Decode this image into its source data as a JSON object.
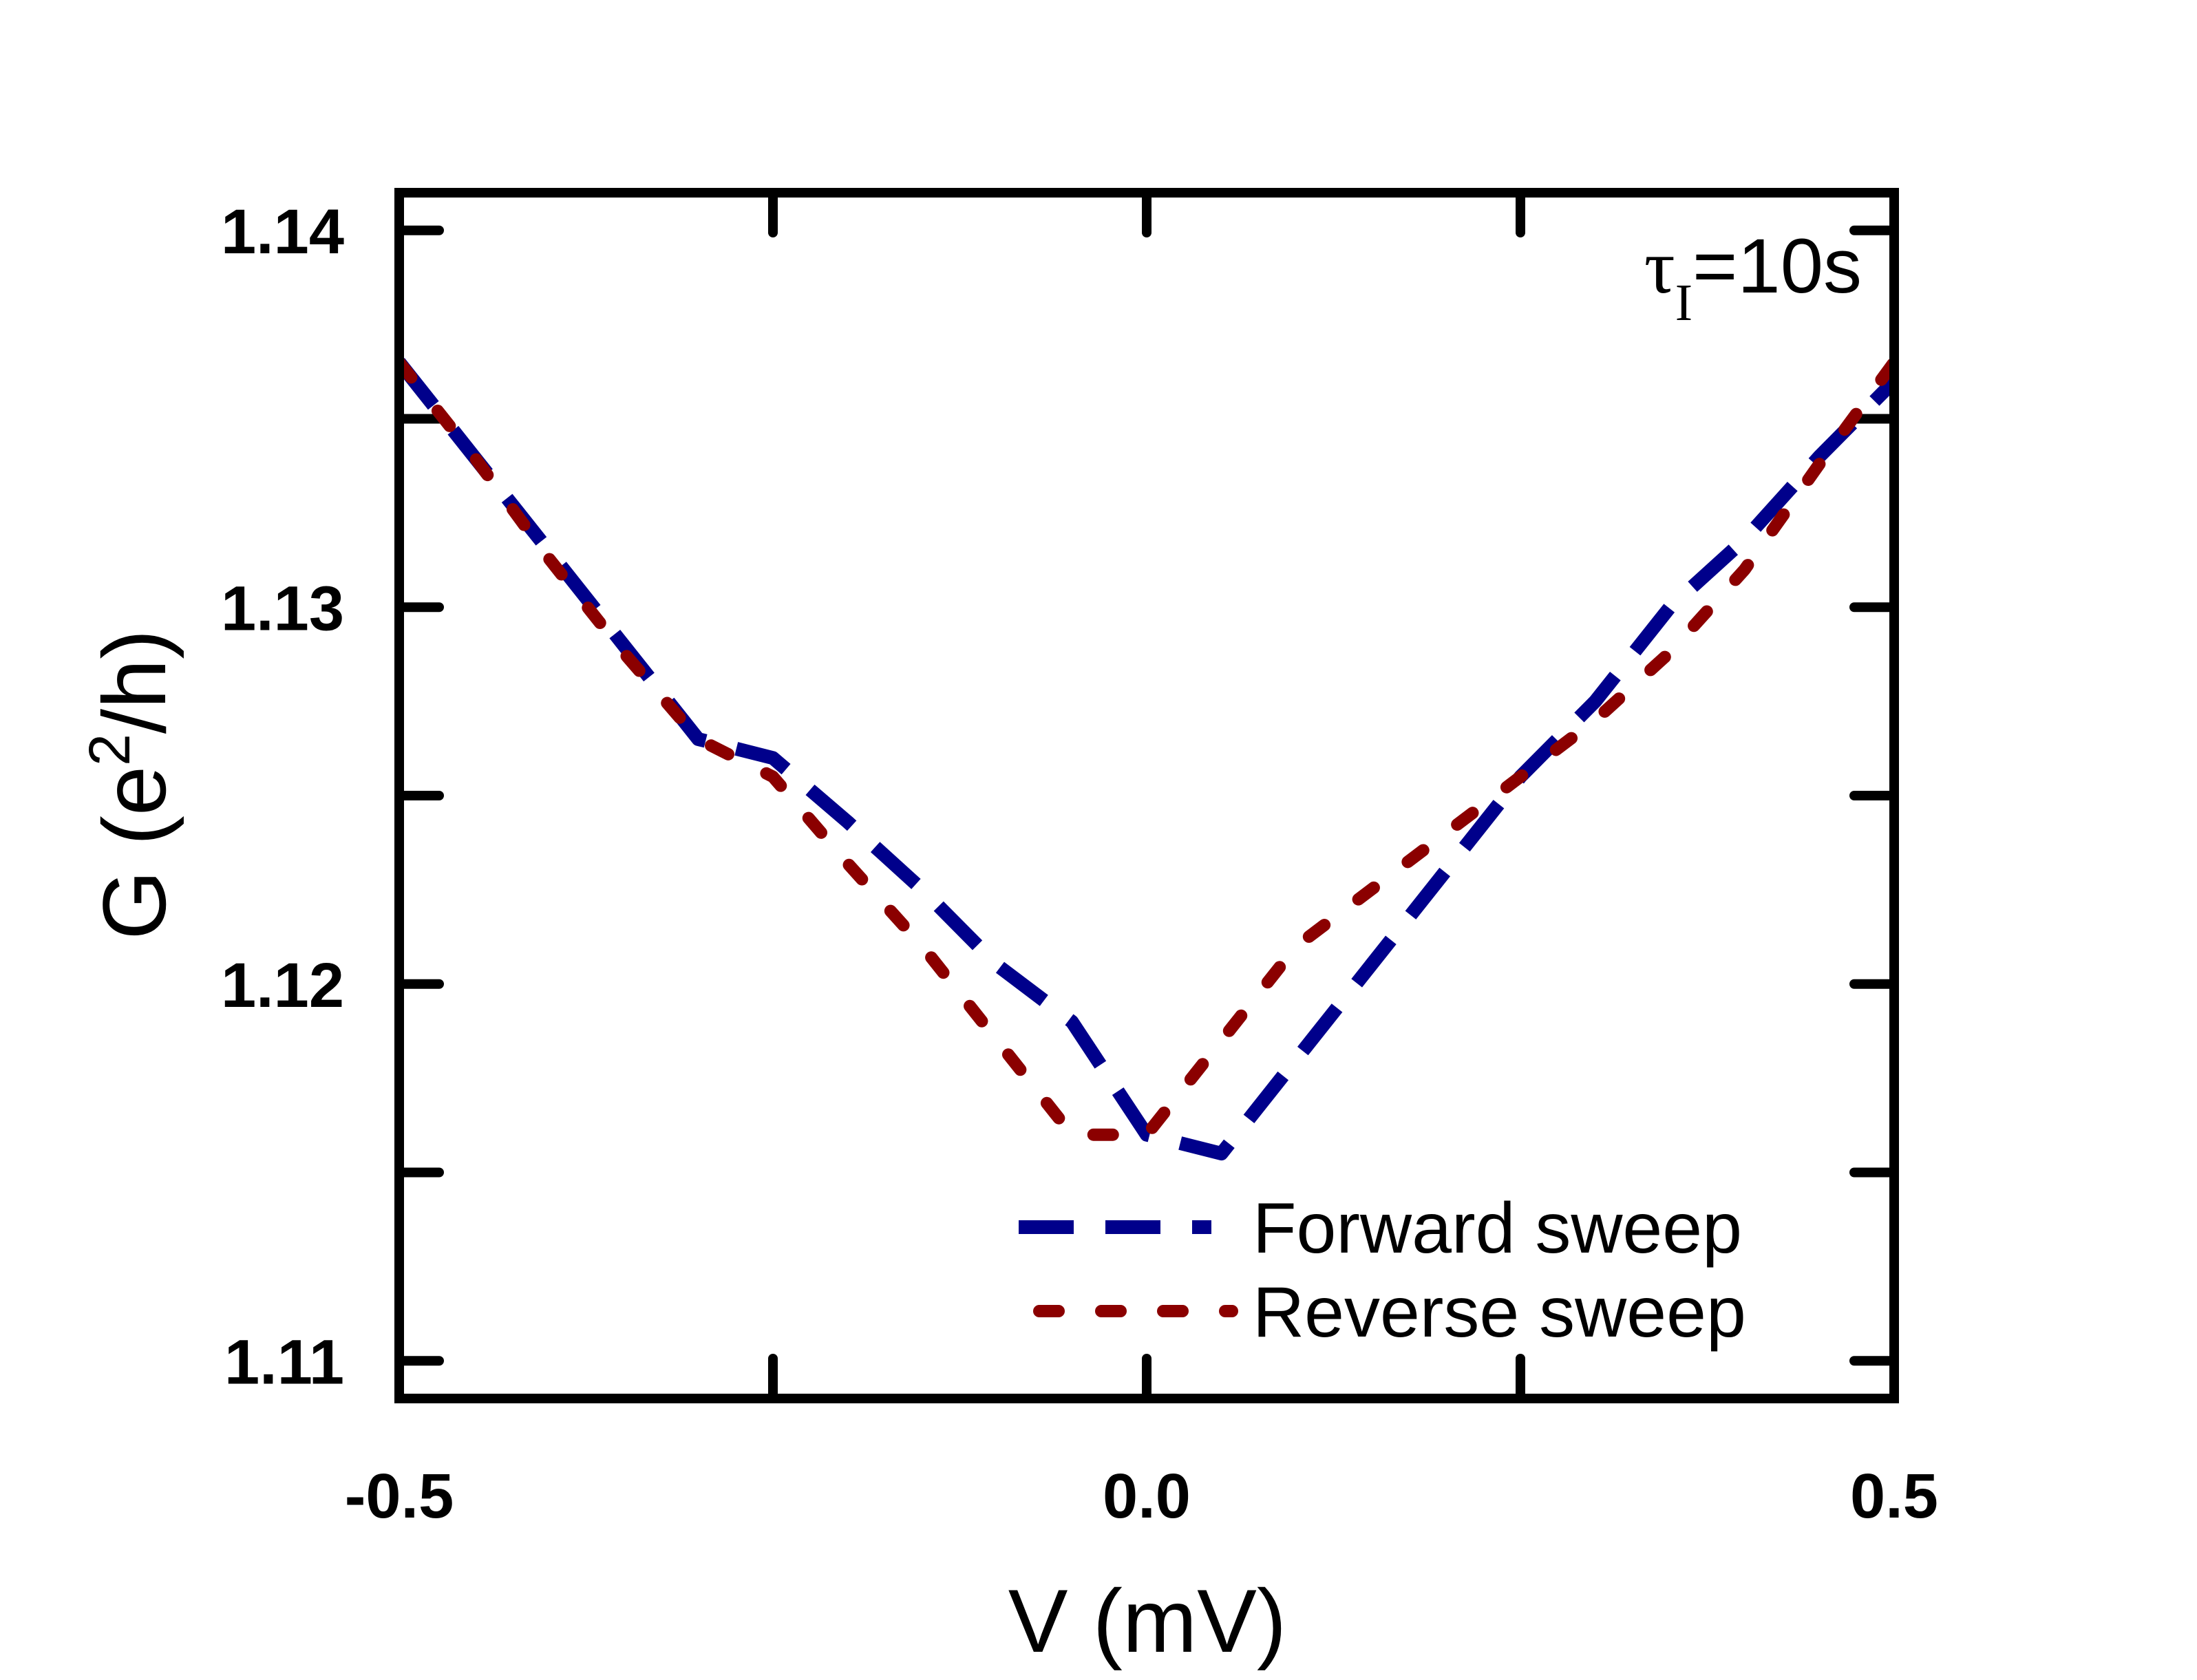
{
  "chart_data": {
    "type": "line",
    "title": "",
    "xlabel": "V (mV)",
    "ylabel": "G (e²/h)",
    "ylabel_parts": {
      "pre": "G (e",
      "sup": "2",
      "post": "/h)"
    },
    "xlim": [
      -0.5,
      0.5
    ],
    "ylim": [
      1.109,
      1.141
    ],
    "x_ticks": [
      -0.5,
      -0.25,
      0.0,
      0.25,
      0.5
    ],
    "x_tick_labels": [
      "-0.5",
      "",
      "0.0",
      "",
      "0.5"
    ],
    "y_ticks": [
      1.11,
      1.115,
      1.12,
      1.125,
      1.13,
      1.135,
      1.14
    ],
    "y_tick_labels": [
      "1.11",
      "",
      "1.12",
      "",
      "1.13",
      "",
      "1.14"
    ],
    "grid": false,
    "legend_position": "bottom-right",
    "annotation": {
      "symbol": "τ",
      "subscript": "I",
      "text": "=10s"
    },
    "series": [
      {
        "name": "Forward sweep",
        "color": "#00008B",
        "style": "dashed",
        "x": [
          -0.5,
          -0.45,
          -0.4,
          -0.35,
          -0.3,
          -0.25,
          -0.2,
          -0.15,
          -0.1,
          -0.05,
          0.0,
          0.05,
          0.1,
          0.15,
          0.2,
          0.25,
          0.3,
          0.35,
          0.4,
          0.45,
          0.5
        ],
        "y": [
          1.1365,
          1.134,
          1.1315,
          1.129,
          1.1265,
          1.126,
          1.1243,
          1.1225,
          1.1205,
          1.119,
          1.116,
          1.1155,
          1.118,
          1.1205,
          1.123,
          1.1255,
          1.1275,
          1.13,
          1.1318,
          1.134,
          1.136
        ]
      },
      {
        "name": "Reverse sweep",
        "color": "#8B0000",
        "style": "dotted",
        "x": [
          -0.5,
          -0.45,
          -0.4,
          -0.35,
          -0.3,
          -0.25,
          -0.2,
          -0.15,
          -0.1,
          -0.05,
          0.0,
          0.05,
          0.1,
          0.15,
          0.2,
          0.25,
          0.3,
          0.35,
          0.4,
          0.45,
          0.5
        ],
        "y": [
          1.1365,
          1.134,
          1.1313,
          1.1288,
          1.1265,
          1.1255,
          1.1232,
          1.121,
          1.1185,
          1.116,
          1.116,
          1.1185,
          1.121,
          1.1225,
          1.124,
          1.1255,
          1.127,
          1.1288,
          1.131,
          1.1338,
          1.1365
        ]
      }
    ]
  }
}
